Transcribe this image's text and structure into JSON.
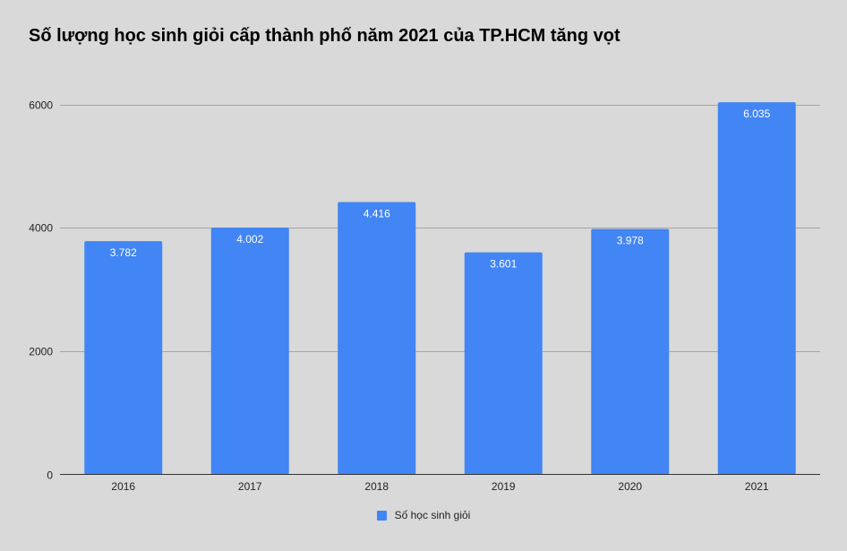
{
  "chart_data": {
    "type": "bar",
    "title": "Số lượng học sinh giỏi cấp thành phố năm 2021 của TP.HCM tăng vọt",
    "categories": [
      "2016",
      "2017",
      "2018",
      "2019",
      "2020",
      "2021"
    ],
    "series": [
      {
        "name": "Số học sinh giỏi",
        "values": [
          3782,
          4002,
          4416,
          3601,
          3978,
          6035
        ],
        "data_labels": [
          "3.782",
          "4.002",
          "4.416",
          "3.601",
          "3.978",
          "6.035"
        ],
        "color": "#4285f4"
      }
    ],
    "xlabel": "",
    "ylabel": "",
    "ylim": [
      0,
      6000
    ],
    "yticks": [
      0,
      2000,
      4000,
      6000
    ],
    "grid": true,
    "legend_position": "bottom"
  }
}
